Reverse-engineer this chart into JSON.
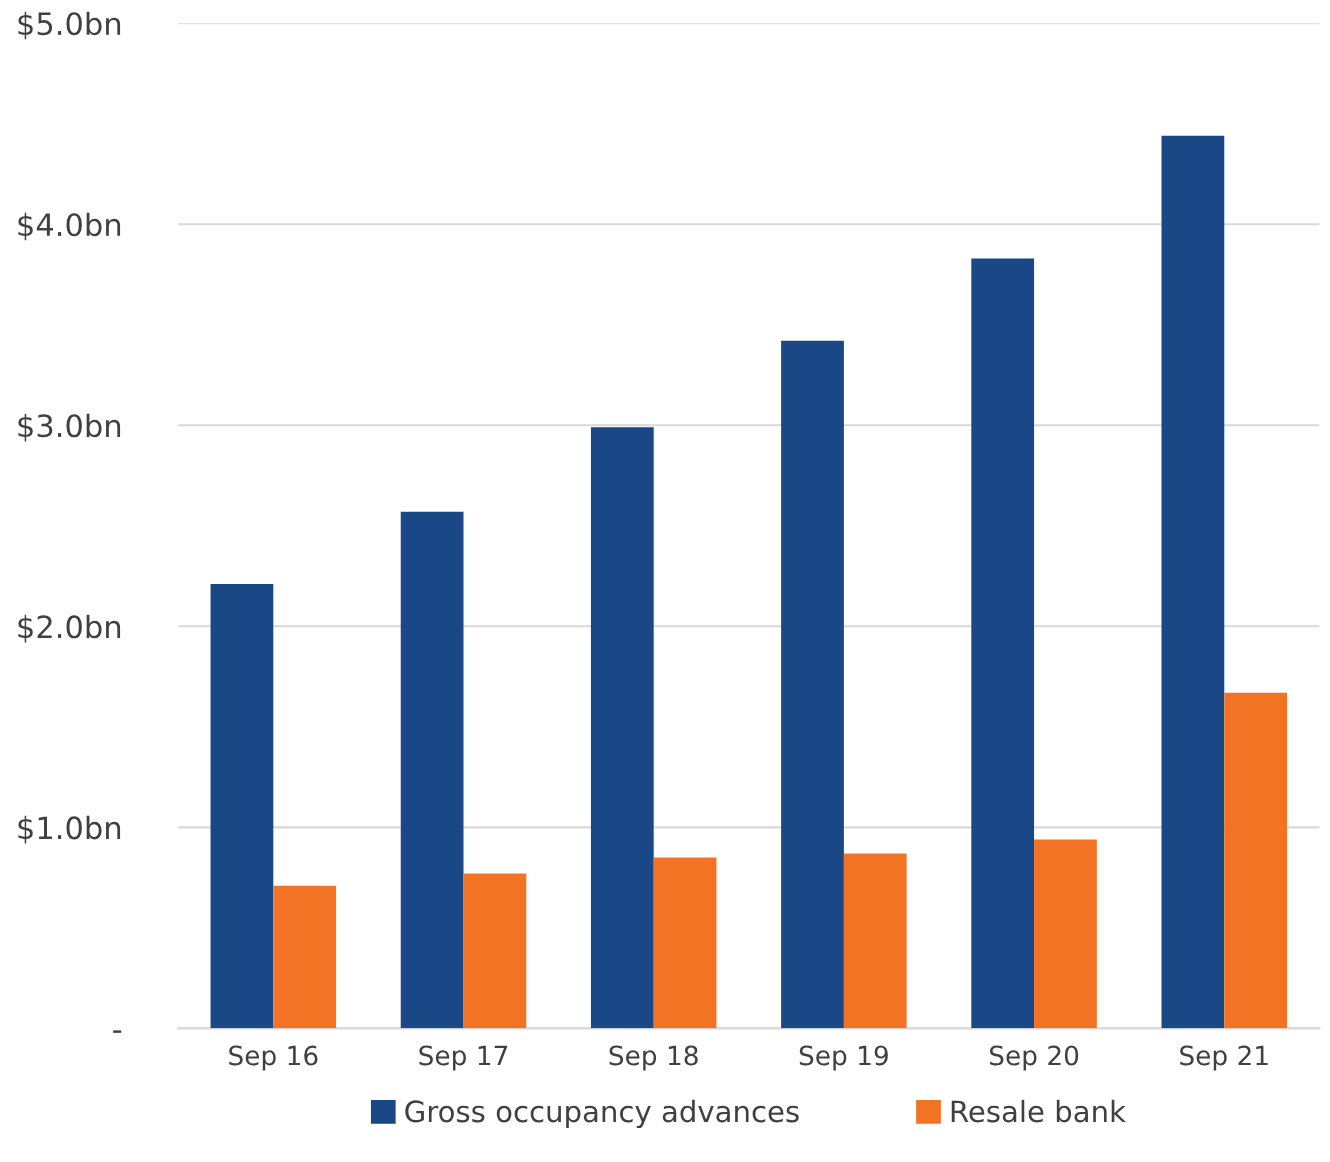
{
  "chart_data": {
    "type": "bar",
    "categories": [
      "Sep 16",
      "Sep 17",
      "Sep 18",
      "Sep 19",
      "Sep 20",
      "Sep 21"
    ],
    "series": [
      {
        "name": "Gross occupancy advances",
        "color": "#1a4785",
        "values": [
          2.21,
          2.57,
          2.99,
          3.42,
          3.83,
          4.44
        ]
      },
      {
        "name": "Resale bank",
        "color": "#f37324",
        "values": [
          0.71,
          0.77,
          0.85,
          0.87,
          0.94,
          1.67
        ]
      }
    ],
    "ylim": [
      0,
      5
    ],
    "yticks": [
      {
        "value": 0,
        "label": "-"
      },
      {
        "value": 1,
        "label": "$1.0bn"
      },
      {
        "value": 2,
        "label": "$2.0bn"
      },
      {
        "value": 3,
        "label": "$3.0bn"
      },
      {
        "value": 4,
        "label": "$4.0bn"
      },
      {
        "value": 5,
        "label": "$5.0bn"
      }
    ],
    "grid": "y",
    "legend": "bottom"
  }
}
